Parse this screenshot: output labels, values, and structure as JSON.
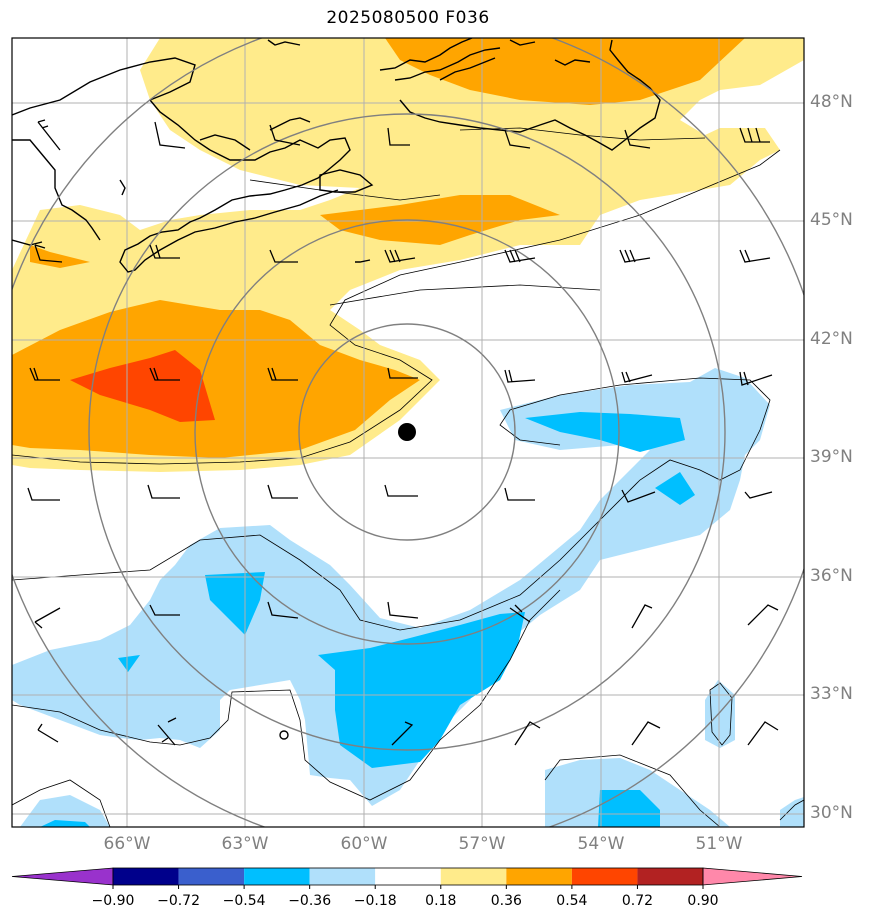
{
  "title": "2025080500 F036",
  "lat_labels": [
    "48°N",
    "45°N",
    "42°N",
    "39°N",
    "36°N",
    "33°N",
    "30°N"
  ],
  "lon_labels": [
    "66°W",
    "63°W",
    "60°W",
    "57°W",
    "54°W",
    "51°W"
  ],
  "colorbar": {
    "ticks": [
      "−0.90",
      "−0.72",
      "−0.54",
      "−0.36",
      "−0.18",
      "0.18",
      "0.36",
      "0.54",
      "0.72",
      "0.90"
    ],
    "colors": [
      "#9932cc",
      "#00008b",
      "#3a5fcd",
      "#00bfff",
      "#b0e0fb",
      "#ffffff",
      "#ffeb8b",
      "#ffa500",
      "#ff4500",
      "#b22222",
      "#ff88aa"
    ]
  },
  "colors": {
    "yellow": "#ffeb8b",
    "orange": "#ffa500",
    "red": "#ff4500",
    "light_blue": "#b0e0fb",
    "blue": "#00bfff",
    "grid": "#b0b0b0",
    "range_ring": "#808080"
  },
  "storm_center": {
    "lon": -58.9,
    "lat": 39.6
  },
  "map_extent": {
    "lon": [
      -69,
      -49
    ],
    "lat": [
      29.6,
      49.6
    ]
  }
}
